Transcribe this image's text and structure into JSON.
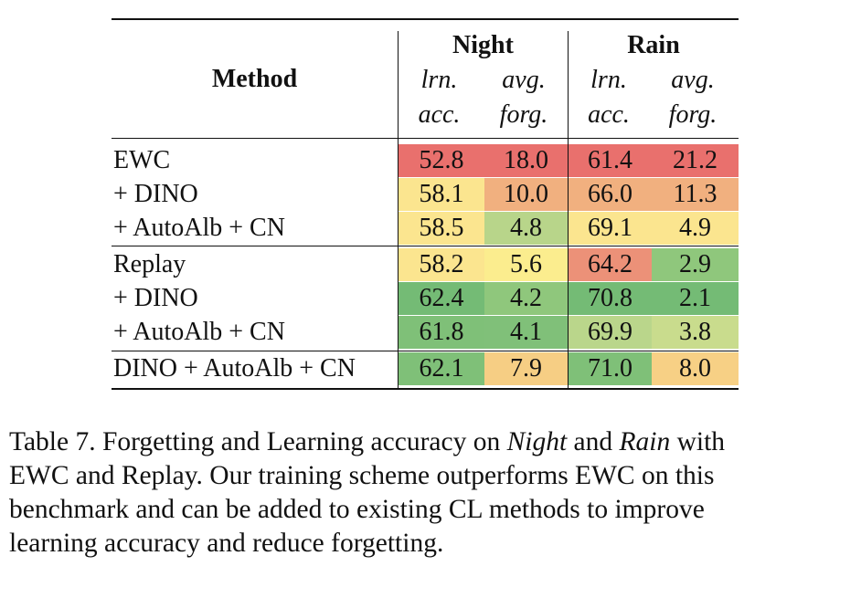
{
  "table": {
    "header": {
      "method": "Method",
      "groups": [
        "Night",
        "Rain"
      ],
      "sub_line1": [
        "lrn.",
        "avg.",
        "lrn.",
        "avg."
      ],
      "sub_line2": [
        "acc.",
        "forg.",
        "acc.",
        "forg."
      ]
    },
    "rows": [
      {
        "method": "EWC",
        "values": [
          "52.8",
          "18.0",
          "61.4",
          "21.2"
        ]
      },
      {
        "method": "+ DINO",
        "values": [
          "58.1",
          "10.0",
          "66.0",
          "11.3"
        ]
      },
      {
        "method": "+ AutoAlb + CN",
        "values": [
          "58.5",
          "4.8",
          "69.1",
          "4.9"
        ]
      },
      {
        "method": "Replay",
        "values": [
          "58.2",
          "5.6",
          "64.2",
          "2.9"
        ]
      },
      {
        "method": "+ DINO",
        "values": [
          "62.4",
          "4.2",
          "70.8",
          "2.1"
        ]
      },
      {
        "method": "+ AutoAlb + CN",
        "values": [
          "61.8",
          "4.1",
          "69.9",
          "3.8"
        ]
      },
      {
        "method": "DINO + AutoAlb + CN",
        "values": [
          "62.1",
          "7.9",
          "71.0",
          "8.0"
        ]
      }
    ],
    "cell_colors": [
      [
        "#e9706d",
        "#e9706d",
        "#e9706d",
        "#e9706d"
      ],
      [
        "#fbe58f",
        "#f1b07f",
        "#f1b07f",
        "#f1b07f"
      ],
      [
        "#fbe58f",
        "#b8d58a",
        "#fbe58f",
        "#fbe58f"
      ],
      [
        "#fbe58f",
        "#fbed8e",
        "#ec9178",
        "#8fc77c"
      ],
      [
        "#74bb75",
        "#8fc77c",
        "#74bb75",
        "#74bb75"
      ],
      [
        "#7fc078",
        "#80c079",
        "#bad68b",
        "#c9dc8d"
      ],
      [
        "#7fc078",
        "#f6ce84",
        "#7fc078",
        "#f7d085"
      ]
    ]
  },
  "caption": {
    "line1_a": "Table 7. Forgetting and Learning accuracy on ",
    "line1_b": "Night",
    "line1_c": " and ",
    "line1_d": "Rain",
    "line1_e": " with",
    "line2": "EWC and Replay. Our training scheme outperforms EWC on this",
    "line3": "benchmark and can be added to existing CL methods to improve",
    "line4": "learning accuracy and reduce forgetting."
  }
}
